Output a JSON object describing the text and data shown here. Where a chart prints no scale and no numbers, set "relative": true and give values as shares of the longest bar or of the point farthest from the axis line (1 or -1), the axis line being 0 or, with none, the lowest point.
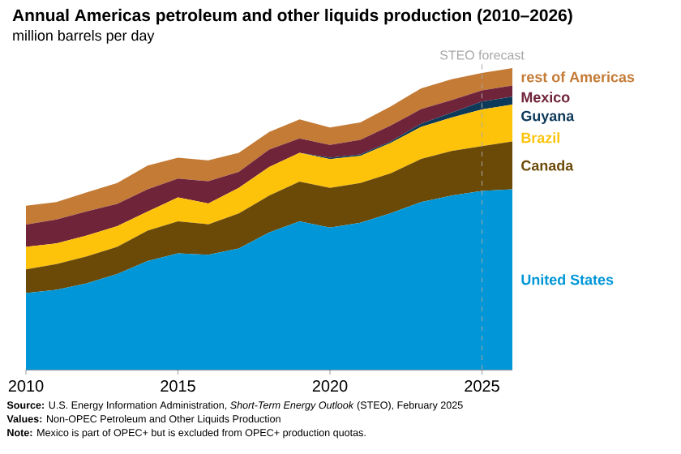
{
  "chart_data": {
    "type": "area",
    "stacked": true,
    "relative": true,
    "title": "Annual Americas petroleum and other liquids production (2010–2026)",
    "subtitle": "million barrels per day",
    "x": [
      2010,
      2011,
      2012,
      2013,
      2014,
      2015,
      2016,
      2017,
      2018,
      2019,
      2020,
      2021,
      2022,
      2023,
      2024,
      2025,
      2026
    ],
    "xlim": [
      2010,
      2026
    ],
    "xticks": [
      2010,
      2015,
      2020,
      2025
    ],
    "series": [
      {
        "name": "United States",
        "color": "#0096d7",
        "values": [
          0.254,
          0.265,
          0.286,
          0.317,
          0.36,
          0.386,
          0.381,
          0.402,
          0.455,
          0.492,
          0.471,
          0.487,
          0.519,
          0.556,
          0.577,
          0.593,
          0.598
        ]
      },
      {
        "name": "Canada",
        "color": "#6b4a07",
        "values": [
          0.079,
          0.085,
          0.09,
          0.09,
          0.101,
          0.106,
          0.101,
          0.116,
          0.122,
          0.132,
          0.132,
          0.132,
          0.132,
          0.143,
          0.148,
          0.148,
          0.159
        ]
      },
      {
        "name": "Brazil",
        "color": "#fdc30a",
        "values": [
          0.074,
          0.069,
          0.069,
          0.069,
          0.063,
          0.079,
          0.069,
          0.085,
          0.095,
          0.095,
          0.095,
          0.09,
          0.101,
          0.106,
          0.111,
          0.122,
          0.122
        ]
      },
      {
        "name": "Guyana",
        "color": "#0e3a5a",
        "values": [
          0,
          0,
          0,
          0,
          0,
          0,
          0,
          0,
          0,
          0,
          0.005,
          0.005,
          0.005,
          0.011,
          0.016,
          0.026,
          0.026
        ]
      },
      {
        "name": "Mexico",
        "color": "#70243a",
        "values": [
          0.074,
          0.079,
          0.08,
          0.074,
          0.074,
          0.063,
          0.074,
          0.053,
          0.058,
          0.048,
          0.042,
          0.048,
          0.053,
          0.048,
          0.042,
          0.037,
          0.037
        ]
      },
      {
        "name": "rest of Americas",
        "color": "#c47b36",
        "values": [
          0.063,
          0.058,
          0.063,
          0.069,
          0.079,
          0.069,
          0.069,
          0.063,
          0.058,
          0.063,
          0.058,
          0.058,
          0.063,
          0.069,
          0.069,
          0.058,
          0.058
        ]
      }
    ],
    "ref_lines": [
      {
        "axis": "x",
        "value": 2025,
        "label": "STEO forecast",
        "color": "#a6a6a6",
        "line_style": "dashed"
      }
    ],
    "annotations": [
      "**Source:** U.S. Energy Information Administration, *Short-Term Energy Outlook* (STEO), February 2025",
      "**Values:** Non-OPEC Petroleum and Other Liquids Production",
      "**Note:** Mexico is part of OPEC+ but is excluded from OPEC+ production quotas."
    ]
  }
}
